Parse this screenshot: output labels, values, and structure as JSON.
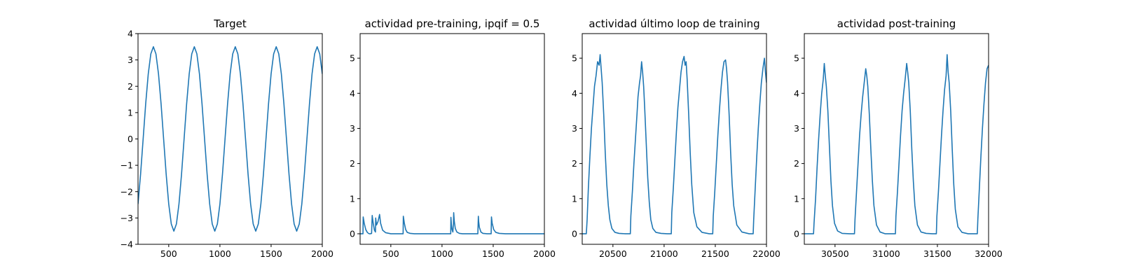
{
  "chart_data": [
    {
      "type": "line",
      "title": "Target",
      "xlabel": "",
      "ylabel": "",
      "xlim": [
        200,
        2000
      ],
      "ylim": [
        -4,
        4
      ],
      "xticks": [
        500,
        1000,
        1500,
        2000
      ],
      "xtick_labels": [
        "500",
        "1000",
        "1500",
        "2000"
      ],
      "yticks": [
        -4,
        -3,
        -2,
        -1,
        0,
        1,
        2,
        3,
        4
      ],
      "ytick_labels": [
        "−4",
        "−3",
        "−2",
        "−1",
        "0",
        "1",
        "2",
        "3",
        "4"
      ],
      "grid": false,
      "line_color": "#1f77b4",
      "series": [
        {
          "x": [
            200,
            225,
            250,
            275,
            300,
            325,
            350,
            375,
            400,
            425,
            450,
            475,
            500,
            525,
            550,
            575,
            600,
            625,
            650,
            675,
            700,
            725,
            750,
            775,
            800,
            825,
            850,
            875,
            900,
            925,
            950,
            975,
            1000,
            1025,
            1050,
            1075,
            1100,
            1125,
            1150,
            1175,
            1200,
            1225,
            1250,
            1275,
            1300,
            1325,
            1350,
            1375,
            1400,
            1425,
            1450,
            1475,
            1500,
            1525,
            1550,
            1575,
            1600,
            1625,
            1650,
            1675,
            1700,
            1725,
            1750,
            1775,
            1800,
            1825,
            1850,
            1875,
            1900,
            1925,
            1950,
            1975,
            2000
          ],
          "values": [
            -2.47,
            -1.34,
            0.0,
            1.34,
            2.47,
            3.23,
            3.5,
            3.23,
            2.47,
            1.34,
            0.0,
            -1.34,
            -2.47,
            -3.23,
            -3.5,
            -3.23,
            -2.47,
            -1.34,
            0.0,
            1.34,
            2.47,
            3.23,
            3.5,
            3.23,
            2.47,
            1.34,
            0.0,
            -1.34,
            -2.47,
            -3.23,
            -3.5,
            -3.23,
            -2.47,
            -1.34,
            0.0,
            1.34,
            2.47,
            3.23,
            3.5,
            3.23,
            2.47,
            1.34,
            0.0,
            -1.34,
            -2.47,
            -3.23,
            -3.5,
            -3.23,
            -2.47,
            -1.34,
            0.0,
            1.34,
            2.47,
            3.23,
            3.5,
            3.23,
            2.47,
            1.34,
            0.0,
            -1.34,
            -2.47,
            -3.23,
            -3.5,
            -3.23,
            -2.47,
            -1.34,
            0.0,
            1.34,
            2.47,
            3.23,
            3.5,
            3.23,
            2.47
          ]
        }
      ]
    },
    {
      "type": "line",
      "title": "actividad pre-training, ipqif = 0.5",
      "xlabel": "",
      "ylabel": "",
      "xlim": [
        200,
        2000
      ],
      "ylim": [
        -0.3,
        5.7
      ],
      "xticks": [
        500,
        1000,
        1500,
        2000
      ],
      "xtick_labels": [
        "500",
        "1000",
        "1500",
        "2000"
      ],
      "yticks": [
        0,
        1,
        2,
        3,
        4,
        5
      ],
      "ytick_labels": [
        "0",
        "1",
        "2",
        "3",
        "4",
        "5"
      ],
      "grid": false,
      "line_color": "#1f77b4",
      "series": [
        {
          "x": [
            200,
            228,
            230,
            240,
            255,
            270,
            282,
            290,
            300,
            312,
            318,
            328,
            340,
            350,
            352,
            360,
            375,
            390,
            400,
            420,
            450,
            500,
            550,
            590,
            620,
            622,
            632,
            645,
            660,
            690,
            730,
            800,
            900,
            1000,
            1085,
            1087,
            1092,
            1098,
            1106,
            1112,
            1114,
            1120,
            1130,
            1145,
            1170,
            1200,
            1260,
            1300,
            1350,
            1355,
            1358,
            1365,
            1380,
            1400,
            1440,
            1470,
            1480,
            1483,
            1490,
            1505,
            1525,
            1560,
            1620,
            1700,
            1800,
            1900,
            2000
          ],
          "values": [
            0.0,
            0.0,
            0.48,
            0.3,
            0.12,
            0.04,
            0.01,
            0.0,
            0.0,
            0.01,
            0.52,
            0.3,
            0.1,
            0.05,
            0.45,
            0.25,
            0.35,
            0.55,
            0.3,
            0.1,
            0.03,
            0.0,
            0.0,
            0.0,
            0.0,
            0.5,
            0.3,
            0.12,
            0.04,
            0.01,
            0.0,
            0.0,
            0.0,
            0.0,
            0.0,
            0.47,
            0.25,
            0.12,
            0.05,
            0.3,
            0.6,
            0.35,
            0.15,
            0.05,
            0.01,
            0.0,
            0.0,
            0.0,
            0.0,
            0.5,
            0.35,
            0.18,
            0.05,
            0.01,
            0.0,
            0.0,
            0.0,
            0.48,
            0.3,
            0.12,
            0.04,
            0.01,
            0.0,
            0.0,
            0.0,
            0.0,
            0.0
          ]
        }
      ]
    },
    {
      "type": "line",
      "title": "actividad último loop de training",
      "xlabel": "",
      "ylabel": "",
      "xlim": [
        20200,
        22000
      ],
      "ylim": [
        -0.3,
        5.7
      ],
      "xticks": [
        20500,
        21000,
        21500,
        22000
      ],
      "xtick_labels": [
        "20500",
        "21000",
        "21500",
        "22000"
      ],
      "yticks": [
        0,
        1,
        2,
        3,
        4,
        5
      ],
      "ytick_labels": [
        "0",
        "1",
        "2",
        "3",
        "4",
        "5"
      ],
      "grid": false,
      "line_color": "#1f77b4",
      "series": [
        {
          "x": [
            20200,
            20240,
            20248,
            20260,
            20275,
            20290,
            20305,
            20320,
            20335,
            20350,
            20365,
            20375,
            20385,
            20395,
            20410,
            20425,
            20440,
            20455,
            20470,
            20490,
            20520,
            20560,
            20620,
            20670,
            20675,
            20690,
            20705,
            20720,
            20735,
            20745,
            20760,
            20770,
            20780,
            20790,
            20800,
            20810,
            20825,
            20840,
            20855,
            20870,
            20890,
            20920,
            20970,
            21030,
            21070,
            21075,
            21090,
            21105,
            21120,
            21135,
            21150,
            21165,
            21180,
            21195,
            21205,
            21215,
            21225,
            21240,
            21255,
            21270,
            21290,
            21320,
            21370,
            21440,
            21475,
            21480,
            21495,
            21510,
            21525,
            21540,
            21555,
            21570,
            21585,
            21600,
            21610,
            21620,
            21635,
            21650,
            21665,
            21680,
            21710,
            21760,
            21830,
            21870,
            21875,
            21890,
            21905,
            21920,
            21935,
            21950,
            21965,
            21980,
            21990,
            22000
          ],
          "values": [
            0.0,
            0.0,
            0.4,
            1.3,
            2.2,
            3.0,
            3.6,
            4.2,
            4.5,
            4.9,
            4.8,
            5.1,
            4.7,
            4.3,
            3.4,
            2.3,
            1.4,
            0.8,
            0.4,
            0.15,
            0.04,
            0.01,
            0.0,
            0.0,
            0.5,
            1.2,
            2.0,
            2.7,
            3.4,
            3.9,
            4.3,
            4.5,
            4.9,
            4.6,
            4.2,
            3.6,
            2.6,
            1.6,
            0.9,
            0.4,
            0.15,
            0.04,
            0.01,
            0.0,
            0.0,
            0.6,
            1.3,
            2.1,
            2.9,
            3.6,
            4.1,
            4.6,
            4.9,
            5.05,
            4.8,
            4.9,
            4.4,
            3.4,
            2.3,
            1.4,
            0.6,
            0.2,
            0.04,
            0.0,
            0.0,
            0.5,
            1.2,
            2.0,
            2.8,
            3.5,
            4.1,
            4.6,
            4.9,
            4.95,
            4.7,
            4.3,
            3.4,
            2.3,
            1.4,
            0.8,
            0.25,
            0.05,
            0.0,
            0.0,
            0.4,
            1.3,
            2.2,
            3.0,
            3.7,
            4.3,
            4.7,
            5.0,
            4.6,
            4.3
          ]
        }
      ]
    },
    {
      "type": "line",
      "title": "actividad post-training",
      "xlabel": "",
      "ylabel": "",
      "xlim": [
        30200,
        32000
      ],
      "ylim": [
        -0.3,
        5.7
      ],
      "xticks": [
        30500,
        31000,
        31500,
        32000
      ],
      "xtick_labels": [
        "30500",
        "31000",
        "31500",
        "32000"
      ],
      "yticks": [
        0,
        1,
        2,
        3,
        4,
        5
      ],
      "ytick_labels": [
        "0",
        "1",
        "2",
        "3",
        "4",
        "5"
      ],
      "grid": false,
      "line_color": "#1f77b4",
      "series": [
        {
          "x": [
            30200,
            30290,
            30295,
            30310,
            30325,
            30340,
            30355,
            30370,
            30385,
            30395,
            30405,
            30415,
            30430,
            30445,
            30460,
            30475,
            30495,
            30525,
            30570,
            30640,
            30690,
            30695,
            30710,
            30725,
            30740,
            30755,
            30770,
            30785,
            30800,
            30810,
            30820,
            30835,
            30850,
            30865,
            30880,
            30905,
            30940,
            30990,
            31060,
            31090,
            31095,
            31110,
            31125,
            31140,
            31155,
            31170,
            31185,
            31200,
            31210,
            31220,
            31235,
            31250,
            31265,
            31280,
            31305,
            31340,
            31390,
            31450,
            31490,
            31495,
            31510,
            31525,
            31540,
            31555,
            31570,
            31585,
            31595,
            31605,
            31615,
            31630,
            31645,
            31660,
            31675,
            31700,
            31740,
            31800,
            31860,
            31890,
            31895,
            31910,
            31925,
            31940,
            31955,
            31970,
            31985,
            32000
          ],
          "values": [
            0.0,
            0.0,
            0.3,
            1.0,
            1.9,
            2.7,
            3.4,
            4.0,
            4.4,
            4.85,
            4.5,
            4.2,
            3.5,
            2.5,
            1.5,
            0.8,
            0.3,
            0.08,
            0.01,
            0.0,
            0.0,
            0.4,
            1.2,
            2.0,
            2.8,
            3.4,
            3.9,
            4.3,
            4.7,
            4.5,
            4.2,
            3.4,
            2.4,
            1.5,
            0.8,
            0.25,
            0.05,
            0.0,
            0.0,
            0.0,
            0.5,
            1.2,
            2.0,
            2.8,
            3.5,
            4.0,
            4.4,
            4.85,
            4.6,
            4.3,
            3.5,
            2.4,
            1.5,
            0.8,
            0.25,
            0.05,
            0.01,
            0.0,
            0.0,
            0.5,
            1.2,
            2.0,
            2.8,
            3.5,
            4.1,
            4.5,
            5.1,
            4.6,
            4.3,
            3.5,
            2.4,
            1.4,
            0.7,
            0.2,
            0.04,
            0.0,
            0.0,
            0.0,
            0.4,
            1.3,
            2.2,
            3.0,
            3.7,
            4.3,
            4.7,
            4.8
          ]
        }
      ]
    }
  ]
}
